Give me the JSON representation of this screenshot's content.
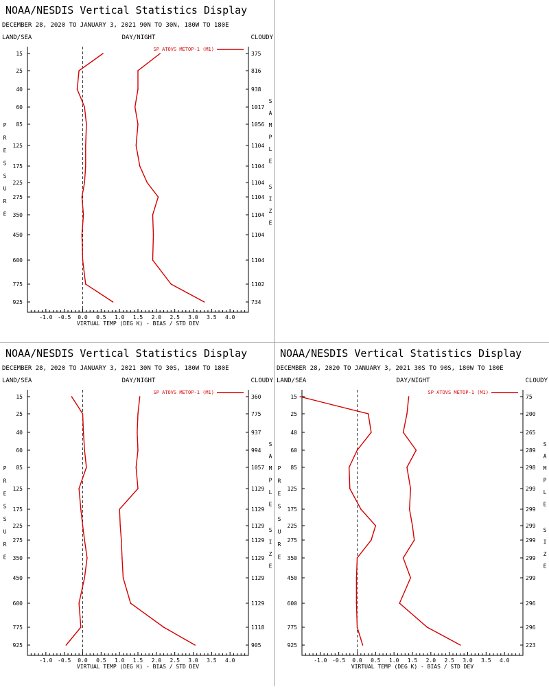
{
  "colors": {
    "series": "#d40000",
    "axis": "#000000",
    "zero_line": "#333333",
    "divider": "#9e9e9e"
  },
  "pressure_levels": [
    "15",
    "25",
    "40",
    "60",
    "85",
    "125",
    "175",
    "225",
    "275",
    "350",
    "450",
    "600",
    "775",
    "925"
  ],
  "vertical_labels": {
    "left": "PRESSURE",
    "right_top": "SAMPLE",
    "right_bottom": "SIZE"
  },
  "chart_data": [
    {
      "type": "line",
      "title": "NOAA/NESDIS Vertical Statistics Display",
      "subtitle": "DECEMBER 28, 2020 TO JANUARY 3, 2021 90N TO 30N, 180W TO 180E",
      "header_left": "LAND/SEA",
      "header_center": "DAY/NIGHT",
      "header_right": "CLOUDY",
      "xlabel": "VIRTUAL TEMP (DEG K) - BIAS / STD DEV",
      "xlim": [
        -1.5,
        4.5
      ],
      "xticks": [
        "-1.0",
        "-0.5",
        "0.0",
        "0.5",
        "1.0",
        "1.5",
        "2.0",
        "2.5",
        "3.0",
        "3.5",
        "4.0"
      ],
      "legend": "SP ATOVS METOP-1 (M1)",
      "legend_position": "top-right",
      "sample_size": [
        "375",
        "816",
        "938",
        "1017",
        "1056",
        "1104",
        "1104",
        "1104",
        "1104",
        "1104",
        "1104",
        "1104",
        "1102",
        "734"
      ],
      "series": [
        {
          "name": "bias",
          "values": [
            0.55,
            -0.1,
            -0.15,
            0.05,
            0.1,
            0.08,
            0.08,
            0.05,
            -0.02,
            0.02,
            -0.02,
            0.0,
            0.08,
            0.82
          ]
        },
        {
          "name": "std_dev",
          "values": [
            2.1,
            1.5,
            1.5,
            1.42,
            1.5,
            1.45,
            1.55,
            1.75,
            2.05,
            1.9,
            1.92,
            1.9,
            2.4,
            3.3
          ]
        }
      ]
    },
    {
      "type": "line",
      "title": "NOAA/NESDIS Vertical Statistics Display",
      "subtitle": "DECEMBER 28, 2020 TO JANUARY 3, 2021 30N TO 30S, 180W TO 180E",
      "header_left": "LAND/SEA",
      "header_center": "DAY/NIGHT",
      "header_right": "CLOUDY",
      "xlabel": "VIRTUAL TEMP (DEG K) - BIAS / STD DEV",
      "xlim": [
        -1.5,
        4.5
      ],
      "xticks": [
        "-1.0",
        "-0.5",
        "0.0",
        "0.5",
        "1.0",
        "1.5",
        "2.0",
        "2.5",
        "3.0",
        "3.5",
        "4.0"
      ],
      "legend": "SP ATOVS METOP-1 (M1)",
      "legend_position": "top-right",
      "sample_size": [
        "360",
        "775",
        "937",
        "994",
        "1057",
        "1129",
        "1129",
        "1129",
        "1129",
        "1129",
        "1129",
        "1129",
        "1118",
        "905"
      ],
      "series": [
        {
          "name": "bias",
          "values": [
            -0.3,
            0.0,
            0.02,
            0.05,
            0.1,
            -0.1,
            -0.05,
            0.0,
            0.05,
            0.12,
            0.05,
            -0.1,
            -0.05,
            -0.45
          ]
        },
        {
          "name": "std_dev",
          "values": [
            1.55,
            1.5,
            1.48,
            1.5,
            1.45,
            1.5,
            1.0,
            1.02,
            1.05,
            1.07,
            1.1,
            1.3,
            2.2,
            3.05
          ]
        }
      ]
    },
    {
      "type": "line",
      "title": "NOAA/NESDIS Vertical Statistics Display",
      "subtitle": "DECEMBER 28, 2020 TO JANUARY 3, 2021 30S TO 90S, 180W TO 180E",
      "header_left": "LAND/SEA",
      "header_center": "DAY/NIGHT",
      "header_right": "CLOUDY",
      "xlabel": "VIRTUAL TEMP (DEG K) - BIAS / STD DEV",
      "xlim": [
        -1.5,
        4.5
      ],
      "xticks": [
        "-1.0",
        "-0.5",
        "0.0",
        "0.5",
        "1.0",
        "1.5",
        "2.0",
        "2.5",
        "3.0",
        "3.5",
        "4.0"
      ],
      "legend": "SP ATOVS METOP-1 (M1)",
      "legend_position": "top-right",
      "sample_size": [
        "75",
        "200",
        "265",
        "289",
        "298",
        "299",
        "299",
        "299",
        "299",
        "299",
        "299",
        "296",
        "296",
        "223"
      ],
      "series": [
        {
          "name": "bias",
          "values": [
            -1.55,
            0.3,
            0.38,
            0.0,
            -0.22,
            -0.2,
            0.1,
            0.5,
            0.38,
            0.0,
            -0.02,
            -0.02,
            0.0,
            0.15
          ]
        },
        {
          "name": "std_dev",
          "values": [
            1.4,
            1.35,
            1.25,
            1.6,
            1.35,
            1.45,
            1.42,
            1.5,
            1.55,
            1.25,
            1.45,
            1.15,
            1.9,
            2.8
          ]
        }
      ]
    }
  ]
}
